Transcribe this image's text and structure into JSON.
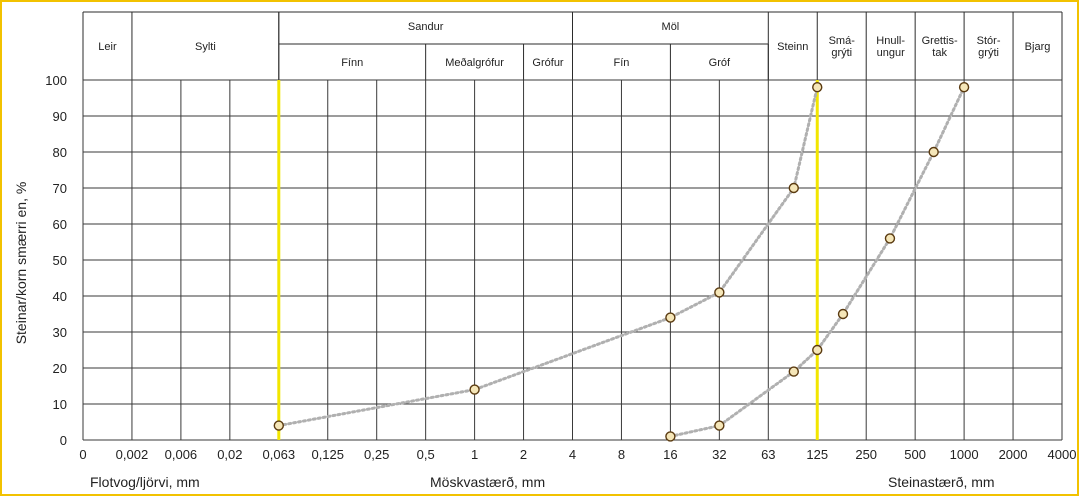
{
  "chart_data": {
    "type": "scatter",
    "title": "",
    "ylabel": "Steinar/korn smærri en, %",
    "xlabel_left": "Flotvog/ljörvi, mm",
    "xlabel_center": "Möskvastærð, mm",
    "xlabel_right": "Steinastærð, mm",
    "ylim": [
      0,
      100
    ],
    "y_ticks": [
      "0",
      "10",
      "20",
      "30",
      "40",
      "50",
      "60",
      "70",
      "80",
      "90",
      "100"
    ],
    "x_ticks": [
      "0",
      "0,002",
      "0,006",
      "0,02",
      "0,063",
      "0,125",
      "0,25",
      "0,5",
      "1",
      "2",
      "4",
      "8",
      "16",
      "32",
      "63",
      "125",
      "250",
      "500",
      "1000",
      "2000",
      "4000"
    ],
    "grid": true,
    "reference_lines": [
      {
        "x": "0,063",
        "color": "#f2e600"
      },
      {
        "x": "125",
        "color": "#f2e600"
      }
    ],
    "classification_header": {
      "groups": [
        "Sandur",
        "Möl"
      ],
      "cells": [
        {
          "label": "Leir",
          "from": "0",
          "to": "0,002"
        },
        {
          "label": "Sylti",
          "from": "0,002",
          "to": "0,063"
        },
        {
          "label": "Fínn",
          "from": "0,063",
          "to": "0,5"
        },
        {
          "label": "Meðalgrófur",
          "from": "0,5",
          "to": "2"
        },
        {
          "label": "Grófur",
          "from": "2",
          "to": "4"
        },
        {
          "label": "Fín",
          "from": "4",
          "to": "16"
        },
        {
          "label": "Gróf",
          "from": "16",
          "to": "63"
        },
        {
          "label": "Steinn",
          "from": "63",
          "to": "125"
        },
        {
          "label": "Smá-\ngrýti",
          "from": "125",
          "to": "250"
        },
        {
          "label": "Hnull-\nungur",
          "from": "250",
          "to": "500"
        },
        {
          "label": "Grettis-\ntak",
          "from": "500",
          "to": "1000"
        },
        {
          "label": "Stór-\ngrýti",
          "from": "1000",
          "to": "2000"
        },
        {
          "label": "Bjarg",
          "from": "2000",
          "to": "4000"
        }
      ]
    },
    "series": [
      {
        "color": "#b0b0b0",
        "points": [
          {
            "x": 0.063,
            "y": 4
          },
          {
            "x": 1,
            "y": 14
          },
          {
            "x": 16,
            "y": 34
          },
          {
            "x": 32,
            "y": 41
          },
          {
            "x": 90,
            "y": 70
          },
          {
            "x": 125,
            "y": 98
          }
        ]
      },
      {
        "color": "#b0b0b0",
        "points": [
          {
            "x": 16,
            "y": 1
          },
          {
            "x": 32,
            "y": 4
          },
          {
            "x": 90,
            "y": 19
          },
          {
            "x": 125,
            "y": 25
          },
          {
            "x": 180,
            "y": 35
          },
          {
            "x": 350,
            "y": 56
          },
          {
            "x": 650,
            "y": 80
          },
          {
            "x": 1000,
            "y": 98
          }
        ]
      }
    ],
    "marker": {
      "fill": "#f5e6b8",
      "stroke": "#5a3a10"
    }
  }
}
